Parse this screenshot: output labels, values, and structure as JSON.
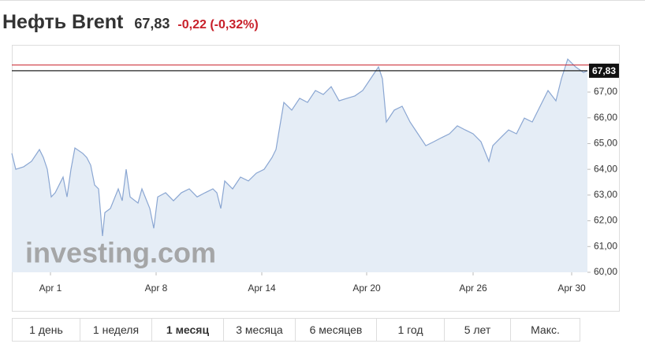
{
  "header": {
    "title": "Нефть Brent",
    "change": "-0,22 (-0,32%)"
  },
  "chart_data": {
    "type": "line",
    "last_price": {
      "value": 67.83,
      "label": "67,83"
    },
    "prev_close": 68.05,
    "watermark": "investing.com",
    "grid": false,
    "xlim": [
      0,
      73
    ],
    "xticks": [
      {
        "value": 4.9,
        "label": "Apr 1"
      },
      {
        "value": 18.3,
        "label": "Apr 8"
      },
      {
        "value": 31.7,
        "label": "Apr 14"
      },
      {
        "value": 45,
        "label": "Apr 20"
      },
      {
        "value": 58.5,
        "label": "Apr 26"
      },
      {
        "value": 71,
        "label": "Apr 30"
      }
    ],
    "ylim": [
      60,
      68.7
    ],
    "yticks": [
      {
        "value": 60,
        "label": "60,00"
      },
      {
        "value": 61,
        "label": "61,00"
      },
      {
        "value": 62,
        "label": "62,00"
      },
      {
        "value": 63,
        "label": "63,00"
      },
      {
        "value": 64,
        "label": "64,00"
      },
      {
        "value": 65,
        "label": "65,00"
      },
      {
        "value": 66,
        "label": "66,00"
      },
      {
        "value": 67,
        "label": "67,00"
      }
    ],
    "series": [
      {
        "color": "#8aa6d2",
        "fill": "#e5edf6",
        "x": [
          0,
          0.5,
          1.5,
          2.5,
          3.5,
          4,
          4.5,
          5,
          5.5,
          6.5,
          7,
          7.5,
          8,
          9,
          9.5,
          10,
          10.5,
          11,
          11.5,
          11.8,
          12.5,
          13.5,
          14,
          14.5,
          15,
          16,
          16.5,
          17.5,
          18,
          18.5,
          19.5,
          20.5,
          21.5,
          22.5,
          23.5,
          24.5,
          25.5,
          26,
          26.5,
          27,
          28,
          29,
          30,
          31,
          32,
          33,
          33.5,
          34,
          34.5,
          35.5,
          36.5,
          37.5,
          38.5,
          39.5,
          40.5,
          41.5,
          42.5,
          43.5,
          44.5,
          45.5,
          46.5,
          47,
          47.5,
          48.5,
          49.5,
          50.5,
          51.5,
          52.5,
          53.5,
          54.5,
          55.5,
          56.5,
          57.5,
          58.5,
          59.5,
          60.5,
          61,
          62,
          63,
          64,
          65,
          66,
          67,
          68,
          69,
          69.7,
          70.5,
          71.5,
          72.5,
          73
        ],
        "values": [
          64.62,
          64.0,
          64.1,
          64.31,
          64.77,
          64.46,
          64.0,
          62.93,
          63.09,
          63.7,
          62.93,
          64.0,
          64.83,
          64.62,
          64.46,
          64.16,
          63.39,
          63.24,
          61.41,
          62.32,
          62.48,
          63.24,
          62.78,
          64.0,
          62.93,
          62.69,
          63.24,
          62.48,
          61.71,
          62.93,
          63.09,
          62.78,
          63.09,
          63.24,
          62.93,
          63.09,
          63.24,
          63.09,
          62.48,
          63.55,
          63.24,
          63.7,
          63.55,
          63.85,
          64.0,
          64.46,
          64.77,
          65.69,
          66.6,
          66.3,
          66.76,
          66.6,
          67.06,
          66.91,
          67.21,
          66.66,
          66.76,
          66.85,
          67.06,
          67.52,
          67.98,
          67.52,
          65.84,
          66.3,
          66.45,
          65.84,
          65.38,
          64.92,
          65.07,
          65.23,
          65.38,
          65.69,
          65.53,
          65.38,
          65.07,
          64.31,
          64.92,
          65.23,
          65.53,
          65.38,
          65.99,
          65.84,
          66.45,
          67.06,
          66.66,
          67.52,
          68.28,
          67.98,
          67.76,
          67.83
        ]
      }
    ]
  },
  "tabs": {
    "items": [
      "1 день",
      "1 неделя",
      "1 месяц",
      "3 месяца",
      "6 месяцев",
      "1 год",
      "5 лет",
      "Макс."
    ],
    "active": 2
  }
}
